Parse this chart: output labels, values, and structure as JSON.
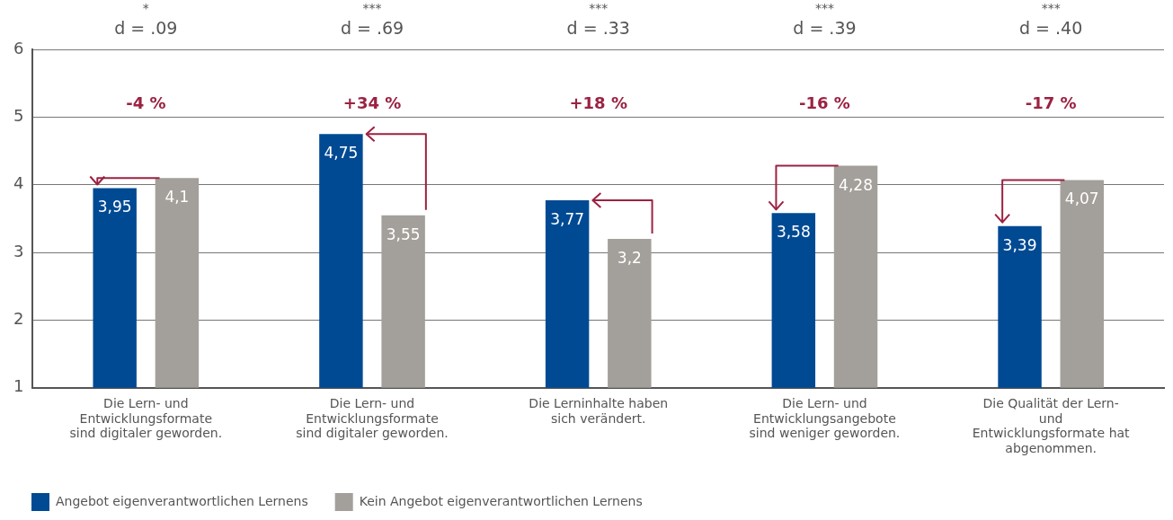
{
  "chart_data": {
    "type": "bar",
    "categories": [
      "Die Lern- und Entwicklungsformate sind digitaler geworden.",
      "Die Lern- und Entwicklungsformate sind digitaler geworden.",
      "Die Lerninhalte haben sich verändert.",
      "Die Lern- und Entwicklungsangebote sind weniger geworden.",
      "Die Qualität der Lern- und Entwicklungsformate hat abgenommen."
    ],
    "series": [
      {
        "name": "Angebot eigenverantwortlichen Lernens",
        "color": "#004a93",
        "values": [
          3.95,
          4.75,
          3.77,
          3.58,
          3.39
        ],
        "value_labels": [
          "3,95",
          "4,75",
          "3,77",
          "3,58",
          "3,39"
        ]
      },
      {
        "name": "Kein Angebot eigenverantwortlichen Lernens",
        "color": "#a39f9a",
        "values": [
          4.1,
          3.55,
          3.2,
          4.28,
          4.07
        ],
        "value_labels": [
          "4,1",
          "3,55",
          "3,2",
          "4,28",
          "4,07"
        ]
      }
    ],
    "ylim": [
      1,
      6
    ],
    "yticks": [
      1,
      2,
      3,
      4,
      5,
      6
    ],
    "grid": "y",
    "legend": "bottom left",
    "annotations": [
      "-4 %",
      "d = .09",
      "*",
      "+34 %",
      "d = .69",
      "***",
      "+18 %",
      "d = .33",
      "***",
      "-16 %",
      "d = .39",
      "***",
      "-17 %",
      "d = .40",
      "***"
    ]
  }
}
